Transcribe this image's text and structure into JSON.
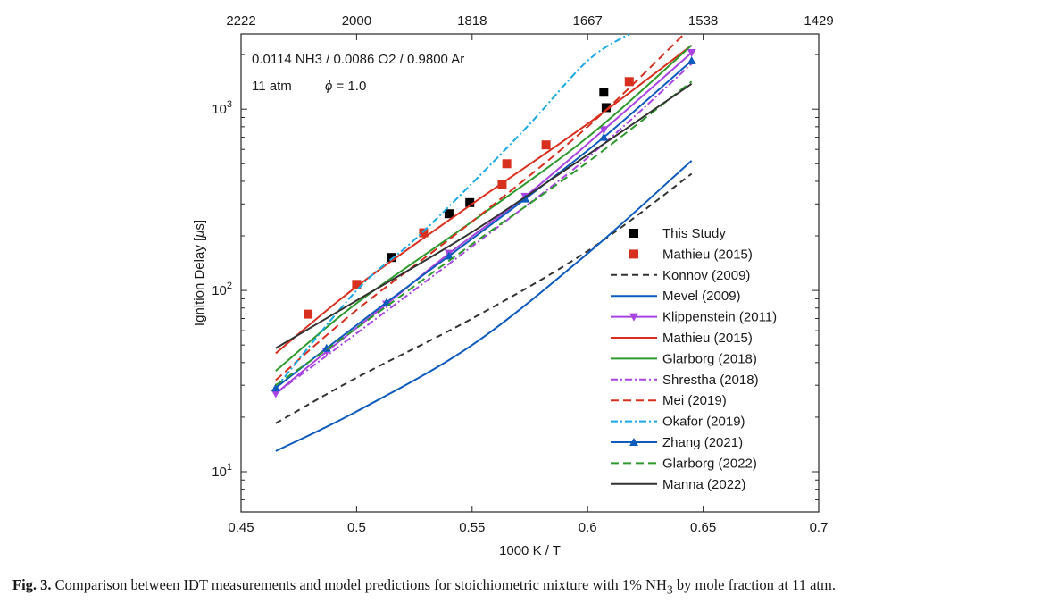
{
  "chart_data": {
    "type": "line",
    "annotations": {
      "mixture": "0.0114 NH3 / 0.0086 O2 / 0.9800 Ar",
      "pressure": "11 atm",
      "phi": "= 1.0"
    },
    "xlabel": "1000 K / T",
    "ylabel": "Ignition Delay [",
    "ylabel_unit": "s]",
    "x_ticks": [
      "0.45",
      "0.5",
      "0.55",
      "0.6",
      "0.65",
      "0.7"
    ],
    "top_ticks": [
      "2222",
      "2000",
      "1818",
      "1667",
      "1538",
      "1429"
    ],
    "y_ticks": [
      "10",
      "10",
      "10"
    ],
    "y_tick_exponents": [
      "1",
      "2",
      "3"
    ],
    "xlim": [
      0.45,
      0.7
    ],
    "ylim": [
      6,
      2600
    ],
    "y_scale": "log",
    "legend_position": "bottom-right inside",
    "colors": {
      "black": "#000000",
      "red": "#d7301f",
      "konnov": "#333333",
      "mevel": "#0d5bbd",
      "purple": "#a844e0",
      "mathieu_line": "#d7301f",
      "green": "#2e9a2e",
      "shrestha": "#a844e0",
      "mei": "#d7301f",
      "okafor": "#1aa8e6",
      "zhang": "#0d5bbd",
      "glarborg2022": "#2e9a2e",
      "manna": "#333333"
    },
    "series": [
      {
        "name": "This Study",
        "kind": "marker",
        "marker": "square",
        "color": "#000000",
        "x": [
          0.515,
          0.54,
          0.549,
          0.607,
          0.608
        ],
        "y": [
          152,
          265,
          305,
          1240,
          1020
        ]
      },
      {
        "name": "Mathieu (2015)",
        "kind": "marker",
        "marker": "square",
        "color": "#d7301f",
        "x": [
          0.479,
          0.5,
          0.529,
          0.563,
          0.565,
          0.582,
          0.618
        ],
        "y": [
          74,
          108,
          208,
          385,
          500,
          635,
          1420
        ]
      },
      {
        "name": "Konnov (2009)",
        "kind": "line",
        "dash": "7,5",
        "color": "#333333",
        "x": [
          0.465,
          0.5,
          0.55,
          0.6,
          0.645
        ],
        "y": [
          18.5,
          33,
          70,
          165,
          440
        ]
      },
      {
        "name": "Mevel (2009)",
        "kind": "line",
        "dash": "",
        "color": "#0d5bbd",
        "x": [
          0.465,
          0.5,
          0.55,
          0.6,
          0.645
        ],
        "y": [
          13,
          21.5,
          50,
          160,
          520
        ]
      },
      {
        "name": "Klippenstein (2011)",
        "kind": "line",
        "dash": "",
        "color": "#a844e0",
        "marker": "tri-down",
        "x": [
          0.465,
          0.487,
          0.513,
          0.54,
          0.573,
          0.607,
          0.645
        ],
        "y": [
          27,
          46,
          84,
          160,
          330,
          770,
          2050
        ]
      },
      {
        "name": "Mathieu (2015)",
        "kind": "line",
        "dash": "",
        "color": "#d7301f",
        "x": [
          0.465,
          0.5,
          0.55,
          0.6,
          0.645
        ],
        "y": [
          45,
          105,
          300,
          830,
          2250
        ]
      },
      {
        "name": "Glarborg (2018)",
        "kind": "line",
        "dash": "",
        "color": "#2e9a2e",
        "x": [
          0.465,
          0.5,
          0.55,
          0.6,
          0.645
        ],
        "y": [
          36,
          85,
          240,
          700,
          2250
        ]
      },
      {
        "name": "Shrestha (2018)",
        "kind": "line",
        "dash": "8,3,2,3",
        "color": "#a844e0",
        "x": [
          0.465,
          0.5,
          0.55,
          0.6,
          0.645
        ],
        "y": [
          27,
          58,
          175,
          540,
          1780
        ]
      },
      {
        "name": "Mei (2019)",
        "kind": "line",
        "dash": "9,5",
        "color": "#d7301f",
        "x": [
          0.465,
          0.5,
          0.55,
          0.6,
          0.645
        ],
        "y": [
          32,
          78,
          240,
          800,
          2850
        ]
      },
      {
        "name": "Okafor (2019)",
        "kind": "line",
        "dash": "8,3,2,3",
        "color": "#1aa8e6",
        "x": [
          0.465,
          0.5,
          0.525,
          0.55,
          0.575,
          0.6,
          0.618
        ],
        "y": [
          29,
          100,
          190,
          390,
          830,
          1850,
          2600
        ]
      },
      {
        "name": "Zhang (2021)",
        "kind": "line",
        "dash": "",
        "color": "#0d5bbd",
        "marker": "tri-up",
        "x": [
          0.465,
          0.487,
          0.513,
          0.54,
          0.573,
          0.607,
          0.645
        ],
        "y": [
          29,
          48,
          86,
          155,
          320,
          700,
          1850
        ]
      },
      {
        "name": "Glarborg (2022)",
        "kind": "line",
        "dash": "9,5",
        "color": "#2e9a2e",
        "x": [
          0.465,
          0.5,
          0.55,
          0.6,
          0.645
        ],
        "y": [
          30,
          62,
          180,
          510,
          1420
        ]
      },
      {
        "name": "Manna (2022)",
        "kind": "line",
        "dash": "",
        "color": "#333333",
        "x": [
          0.465,
          0.5,
          0.55,
          0.6,
          0.645
        ],
        "y": [
          48,
          88,
          210,
          560,
          1380
        ]
      }
    ]
  },
  "caption": {
    "label": "Fig. 3.",
    "text_before": " Comparison between IDT measurements and model predictions for stoichiometric mixture with 1% NH",
    "subscript": "3",
    "text_after": " by mole fraction at 11 atm."
  }
}
